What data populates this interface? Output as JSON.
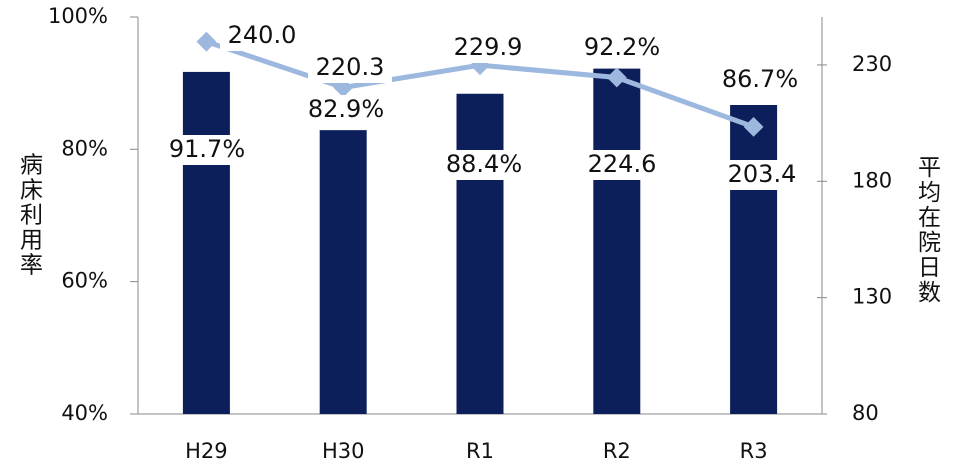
{
  "chart_data": {
    "type": "bar",
    "categories": [
      "H29",
      "H30",
      "R1",
      "R2",
      "R3"
    ],
    "ylabel": "病床利用率",
    "y2label": "平均在院日数",
    "ylim": [
      40,
      100
    ],
    "yticks": [
      {
        "value": 40,
        "label": "40%"
      },
      {
        "value": 60,
        "label": "60%"
      },
      {
        "value": 80,
        "label": "80%"
      },
      {
        "value": 100,
        "label": "100%"
      }
    ],
    "y2lim": [
      80,
      250.6
    ],
    "y2ticks": [
      80,
      130,
      180,
      230
    ],
    "series": [
      {
        "name": "病床利用率",
        "type": "bar",
        "color": "#0c1f5b",
        "values": [
          91.7,
          82.9,
          88.4,
          92.2,
          86.7
        ],
        "value_labels": [
          "91.7%",
          "82.9%",
          "88.4%",
          "92.2%",
          "86.7%"
        ]
      },
      {
        "name": "平均在院日数",
        "type": "line",
        "axis": "y2",
        "color": "#9db8de",
        "values": [
          240.0,
          220.3,
          229.9,
          224.6,
          203.4
        ],
        "value_labels": [
          "240.0",
          "220.3",
          "229.9",
          "224.6",
          "203.4"
        ]
      }
    ]
  }
}
